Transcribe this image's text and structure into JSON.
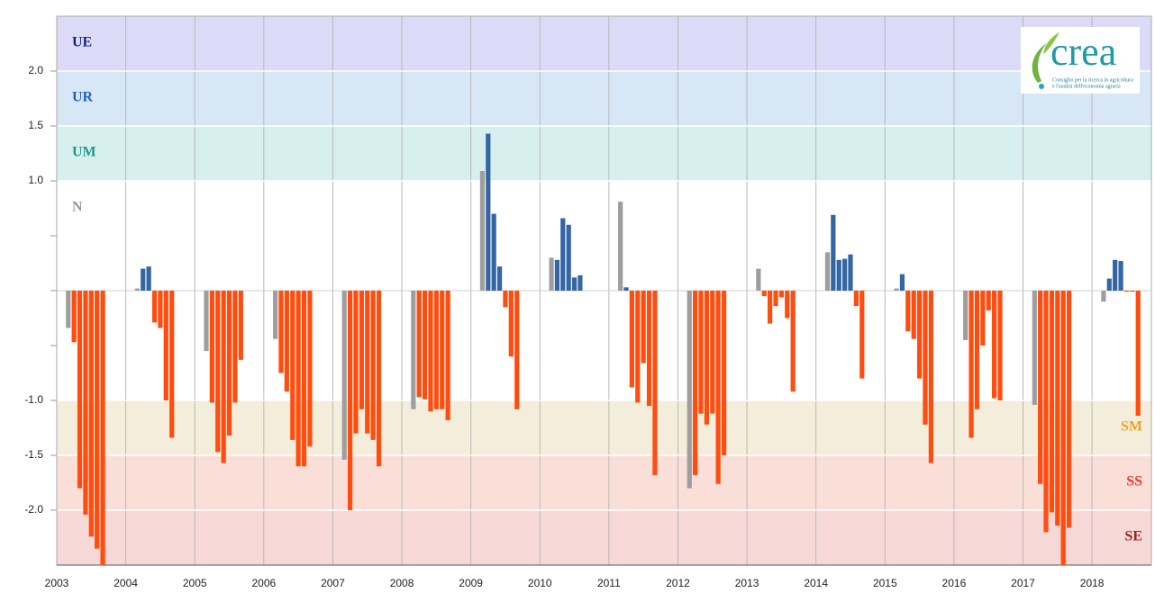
{
  "chart_data": {
    "type": "bar",
    "x": [
      2003.167,
      2003.25,
      2003.333,
      2003.417,
      2003.5,
      2003.583,
      2003.667,
      2004.167,
      2004.25,
      2004.333,
      2004.417,
      2004.5,
      2004.583,
      2004.667,
      2005.167,
      2005.25,
      2005.333,
      2005.417,
      2005.5,
      2005.583,
      2005.667,
      2006.167,
      2006.25,
      2006.333,
      2006.417,
      2006.5,
      2006.583,
      2006.667,
      2007.167,
      2007.25,
      2007.333,
      2007.417,
      2007.5,
      2007.583,
      2007.667,
      2008.167,
      2008.25,
      2008.333,
      2008.417,
      2008.5,
      2008.583,
      2008.667,
      2009.167,
      2009.25,
      2009.333,
      2009.417,
      2009.5,
      2009.583,
      2009.667,
      2010.167,
      2010.25,
      2010.333,
      2010.417,
      2010.5,
      2010.583,
      2011.167,
      2011.25,
      2011.333,
      2011.417,
      2011.5,
      2011.583,
      2011.667,
      2012.167,
      2012.25,
      2012.333,
      2012.417,
      2012.5,
      2012.583,
      2012.667,
      2013.167,
      2013.25,
      2013.333,
      2013.417,
      2013.5,
      2013.583,
      2013.667,
      2014.167,
      2014.25,
      2014.333,
      2014.417,
      2014.5,
      2014.583,
      2014.667,
      2015.167,
      2015.25,
      2015.333,
      2015.417,
      2015.5,
      2015.583,
      2015.667,
      2016.167,
      2016.25,
      2016.333,
      2016.417,
      2016.5,
      2016.583,
      2016.667,
      2017.167,
      2017.25,
      2017.333,
      2017.417,
      2017.5,
      2017.583,
      2017.667,
      2018.167,
      2018.25,
      2018.333,
      2018.417,
      2018.5,
      2018.583,
      2018.667
    ],
    "values": [
      -0.34,
      -0.47,
      -1.8,
      -2.04,
      -2.24,
      -2.35,
      -2.5,
      0.02,
      0.2,
      0.22,
      -0.29,
      -0.34,
      -1.0,
      -1.34,
      -0.55,
      -1.02,
      -1.47,
      -1.57,
      -1.32,
      -1.02,
      -0.63,
      -0.44,
      -0.75,
      -0.92,
      -1.36,
      -1.6,
      -1.6,
      -1.42,
      -1.54,
      -2.0,
      -1.3,
      -1.08,
      -1.3,
      -1.36,
      -1.6,
      -1.08,
      -0.97,
      -0.99,
      -1.1,
      -1.08,
      -1.08,
      -1.18,
      1.09,
      1.43,
      0.7,
      0.22,
      -0.15,
      -0.6,
      -1.08,
      0.3,
      0.28,
      0.66,
      0.6,
      0.12,
      0.14,
      0.81,
      0.03,
      -0.88,
      -1.02,
      -0.66,
      -1.05,
      -1.68,
      -1.8,
      -1.68,
      -1.12,
      -1.22,
      -1.12,
      -1.76,
      -1.5,
      0.2,
      -0.05,
      -0.3,
      -0.14,
      -0.06,
      -0.25,
      -0.92,
      0.35,
      0.69,
      0.28,
      0.29,
      0.33,
      -0.14,
      -0.8,
      0.02,
      0.15,
      -0.37,
      -0.44,
      -0.8,
      -1.22,
      -1.57,
      -0.45,
      -1.34,
      -1.08,
      -0.5,
      -0.18,
      -0.98,
      -1.0,
      -1.04,
      -1.76,
      -2.2,
      -2.02,
      -2.14,
      -2.5,
      -2.16,
      -0.1,
      0.11,
      0.28,
      0.27,
      -0.01,
      -0.01,
      -1.14
    ],
    "colors": [
      "#9e9e9e",
      "#ff4c0f",
      "#ff4c0f",
      "#ff4c0f",
      "#ff4c0f",
      "#ff4c0f",
      "#ff4c0f",
      "#9e9e9e",
      "#3465a4",
      "#3465a4",
      "#ff4c0f",
      "#ff4c0f",
      "#ff4c0f",
      "#ff4c0f",
      "#9e9e9e",
      "#ff4c0f",
      "#ff4c0f",
      "#ff4c0f",
      "#ff4c0f",
      "#ff4c0f",
      "#ff4c0f",
      "#9e9e9e",
      "#ff4c0f",
      "#ff4c0f",
      "#ff4c0f",
      "#ff4c0f",
      "#ff4c0f",
      "#ff4c0f",
      "#9e9e9e",
      "#ff4c0f",
      "#ff4c0f",
      "#ff4c0f",
      "#ff4c0f",
      "#ff4c0f",
      "#ff4c0f",
      "#9e9e9e",
      "#ff4c0f",
      "#ff4c0f",
      "#ff4c0f",
      "#ff4c0f",
      "#ff4c0f",
      "#ff4c0f",
      "#9e9e9e",
      "#3465a4",
      "#3465a4",
      "#3465a4",
      "#ff4c0f",
      "#ff4c0f",
      "#ff4c0f",
      "#9e9e9e",
      "#3465a4",
      "#3465a4",
      "#3465a4",
      "#3465a4",
      "#3465a4",
      "#9e9e9e",
      "#3465a4",
      "#ff4c0f",
      "#ff4c0f",
      "#ff4c0f",
      "#ff4c0f",
      "#ff4c0f",
      "#9e9e9e",
      "#ff4c0f",
      "#ff4c0f",
      "#ff4c0f",
      "#ff4c0f",
      "#ff4c0f",
      "#ff4c0f",
      "#9e9e9e",
      "#ff4c0f",
      "#ff4c0f",
      "#ff4c0f",
      "#ff4c0f",
      "#ff4c0f",
      "#ff4c0f",
      "#9e9e9e",
      "#3465a4",
      "#3465a4",
      "#3465a4",
      "#3465a4",
      "#ff4c0f",
      "#ff4c0f",
      "#9e9e9e",
      "#3465a4",
      "#ff4c0f",
      "#ff4c0f",
      "#ff4c0f",
      "#ff4c0f",
      "#ff4c0f",
      "#9e9e9e",
      "#ff4c0f",
      "#ff4c0f",
      "#ff4c0f",
      "#ff4c0f",
      "#ff4c0f",
      "#ff4c0f",
      "#9e9e9e",
      "#ff4c0f",
      "#ff4c0f",
      "#ff4c0f",
      "#ff4c0f",
      "#ff4c0f",
      "#ff4c0f",
      "#9e9e9e",
      "#3465a4",
      "#3465a4",
      "#3465a4",
      "#ff4c0f",
      "#ff4c0f",
      "#ff4c0f"
    ],
    "xlim": [
      2003,
      2018.86
    ],
    "xticks": [
      2003,
      2004,
      2005,
      2006,
      2007,
      2008,
      2009,
      2010,
      2011,
      2012,
      2013,
      2014,
      2015,
      2016,
      2017,
      2018
    ],
    "ylim": [
      -2.5,
      2.5
    ],
    "yticks": [
      {
        "value": 2,
        "label": "2.0"
      },
      {
        "value": 1.5,
        "label": "1.5"
      },
      {
        "value": 1,
        "label": "1.0"
      },
      {
        "value": -1,
        "label": "-1.0"
      },
      {
        "value": -1.5,
        "label": "-1.5"
      },
      {
        "value": -2,
        "label": "-2.0"
      }
    ],
    "yticks_minor": [
      0.5,
      0,
      -0.5
    ],
    "grid": true,
    "bands": [
      {
        "label": "UE",
        "from": 2,
        "to": 2.5,
        "color": "#dcdaf6",
        "text_color": "#1a237e",
        "side": "left"
      },
      {
        "label": "UR",
        "from": 1.5,
        "to": 2,
        "color": "#d8e7f6",
        "text_color": "#1f63c6",
        "side": "left"
      },
      {
        "label": "UM",
        "from": 1,
        "to": 1.5,
        "color": "#d8efef",
        "text_color": "#23978a",
        "side": "left"
      },
      {
        "label": "N",
        "from": -1,
        "to": 1,
        "color": "#ffffff",
        "text_color": "#9a9a9a",
        "side": "left"
      },
      {
        "label": "SM",
        "from": -1.5,
        "to": -1,
        "color": "#f4eddb",
        "text_color": "#f2a21c",
        "side": "right"
      },
      {
        "label": "SS",
        "from": -2,
        "to": -1.5,
        "color": "#fadfd9",
        "text_color": "#ee3a2c",
        "side": "right"
      },
      {
        "label": "SE",
        "from": -2.5,
        "to": -2,
        "color": "#f6d8d7",
        "text_color": "#9c2418",
        "side": "right"
      }
    ]
  },
  "logo": {
    "name": "crea",
    "line1": "Consiglio per la ricerca in agricoltura",
    "line2": "e l'analisi dell'economia agraria"
  }
}
